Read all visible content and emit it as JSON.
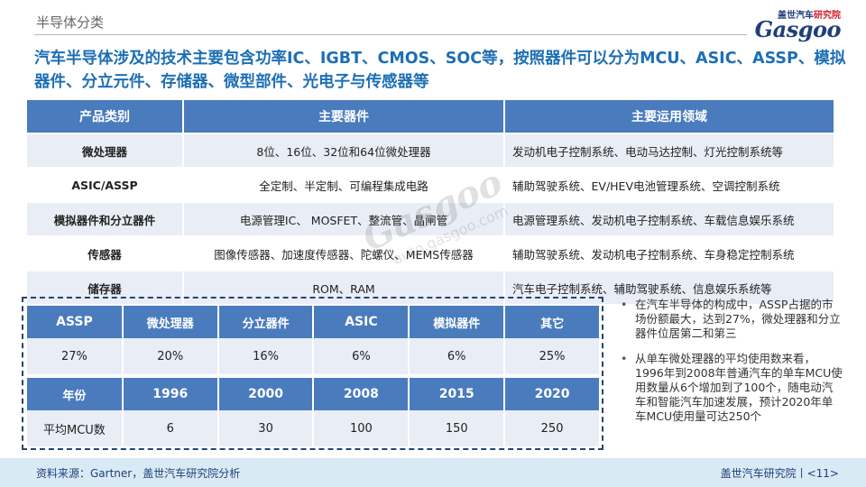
{
  "header": {
    "section_label": "半导体分类",
    "logo_line": "盖世汽车",
    "logo_line_accent": "研究院",
    "logo_word": "Gasgoo"
  },
  "headline": "汽车半导体涉及的技术主要包含功率IC、IGBT、CMOS、SOC等，按照器件可以分为MCU、ASIC、ASSP、模拟器件、分立元件、存储器、微型部件、光电子与传感器等",
  "main_table": {
    "headers": [
      "产品类别",
      "主要器件",
      "主要运用领域"
    ],
    "rows": [
      [
        "微处理器",
        "8位、16位、32位和64位微处理器",
        "发动机电子控制系统、电动马达控制、灯光控制系统等"
      ],
      [
        "ASIC/ASSP",
        "全定制、半定制、可编程集成电路",
        "辅助驾驶系统、EV/HEV电池管理系统、空调控制系统"
      ],
      [
        "模拟器件和分立器件",
        "电源管理IC、 MOSFET、整流管、晶闸管",
        "电源管理系统、发动机电子控制系统、车载信息娱乐系统"
      ],
      [
        "传感器",
        "图像传感器、加速度传感器、陀螺仪、MEMS传感器",
        "辅助驾驶系统、发动机电子控制系统、车身稳定控制系统"
      ],
      [
        "储存器",
        "ROM、RAM",
        "汽车电子控制系统、辅助驾驶系统、信息娱乐系统等"
      ]
    ]
  },
  "share_table": {
    "headers": [
      "ASSP",
      "微处理器",
      "分立器件",
      "ASIC",
      "模拟器件",
      "其它"
    ],
    "values": [
      "27%",
      "20%",
      "16%",
      "6%",
      "6%",
      "25%"
    ]
  },
  "mcu_table": {
    "headers": [
      "年份",
      "1996",
      "2000",
      "2008",
      "2015",
      "2020"
    ],
    "row_label": "平均MCU数",
    "values": [
      "6",
      "30",
      "100",
      "150",
      "250"
    ]
  },
  "bullets": [
    "在汽车半导体的构成中，ASSP占据的市场份额最大，达到27%，微处理器和分立器件位居第二和第三",
    "从单车微处理器的平均使用数来看，1996年到2008年普通汽车的单车MCU使用数量从6个增加到了100个，随电动汽车和智能汽车加速发展，预计2020年单车MCU使用量可达250个"
  ],
  "footer": {
    "source": "资料来源：Gartner，盖世汽车研究院分析",
    "page": "盖世汽车研究院丨<11>"
  },
  "watermark": {
    "brand": "Gasgoo",
    "url": "auto.gasgoo.com"
  }
}
